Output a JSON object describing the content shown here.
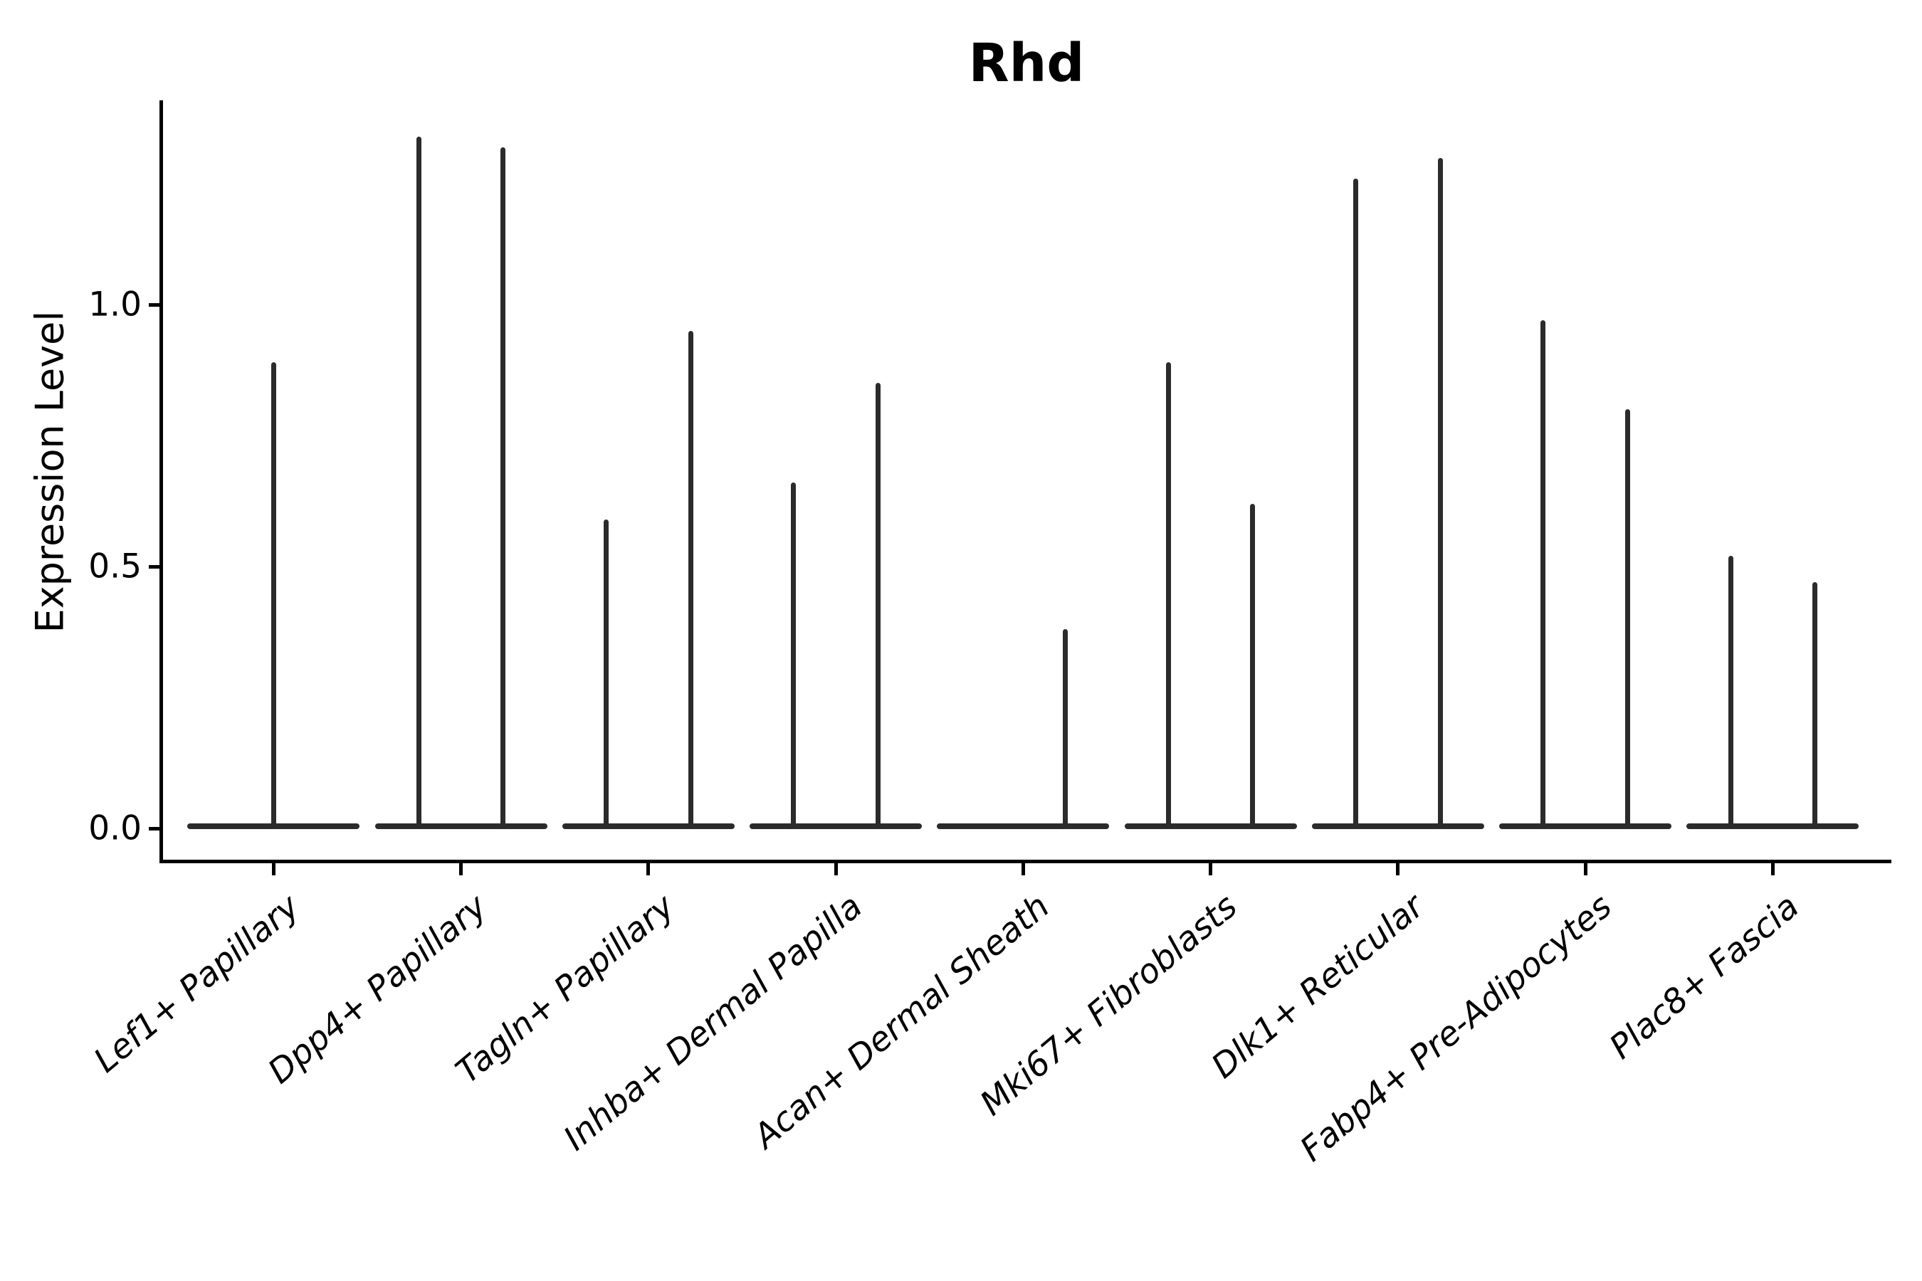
{
  "title": "Rhd",
  "colors": {
    "violin": "#2b2b2b",
    "axis": "#000000",
    "text": "#000000"
  },
  "chart_data": {
    "type": "violin",
    "title": "Rhd",
    "xlabel": "",
    "ylabel": "Expression Level",
    "ylim": [
      0.0,
      1.39
    ],
    "ytick_values": [
      0.0,
      0.5,
      1.0
    ],
    "ytick_labels": [
      "0.0",
      "0.5",
      "1.0"
    ],
    "grid": false,
    "legend": "none",
    "description": "Violin plot of Rhd expression per fibroblast cluster; each cluster shows narrow spike violins rising from a wide flat base at 0 (most cells have zero expression). Most clusters contain a left and right violin pair; max value of each spike listed below.",
    "categories": [
      "Lef1+ Papillary",
      "Dpp4+ Papillary",
      "Tagln+ Papillary",
      "Inhba+ Dermal Papilla",
      "Acan+ Dermal Sheath",
      "Mki67+ Fibroblasts",
      "Dlk1+ Reticular",
      "Fabp4+ Pre-Adipocytes",
      "Plac8+ Fascia"
    ],
    "series": [
      {
        "category": "Lef1+ Papillary",
        "violins": [
          {
            "position": "center",
            "max": 0.89
          }
        ]
      },
      {
        "category": "Dpp4+ Papillary",
        "violins": [
          {
            "position": "left",
            "max": 1.32
          },
          {
            "position": "right",
            "max": 1.3
          }
        ]
      },
      {
        "category": "Tagln+ Papillary",
        "violins": [
          {
            "position": "left",
            "max": 0.59
          },
          {
            "position": "right",
            "max": 0.95
          }
        ]
      },
      {
        "category": "Inhba+ Dermal Papilla",
        "violins": [
          {
            "position": "left",
            "max": 0.66
          },
          {
            "position": "right",
            "max": 0.85
          }
        ]
      },
      {
        "category": "Acan+ Dermal Sheath",
        "violins": [
          {
            "position": "right",
            "max": 0.38
          }
        ]
      },
      {
        "category": "Mki67+ Fibroblasts",
        "violins": [
          {
            "position": "left",
            "max": 0.89
          },
          {
            "position": "right",
            "max": 0.62
          }
        ]
      },
      {
        "category": "Dlk1+ Reticular",
        "violins": [
          {
            "position": "left",
            "max": 1.24
          },
          {
            "position": "right",
            "max": 1.28
          }
        ]
      },
      {
        "category": "Fabp4+ Pre-Adipocytes",
        "violins": [
          {
            "position": "left",
            "max": 0.97
          },
          {
            "position": "right",
            "max": 0.8
          }
        ]
      },
      {
        "category": "Plac8+ Fascia",
        "violins": [
          {
            "position": "left",
            "max": 0.52
          },
          {
            "position": "right",
            "max": 0.47
          }
        ]
      }
    ]
  }
}
